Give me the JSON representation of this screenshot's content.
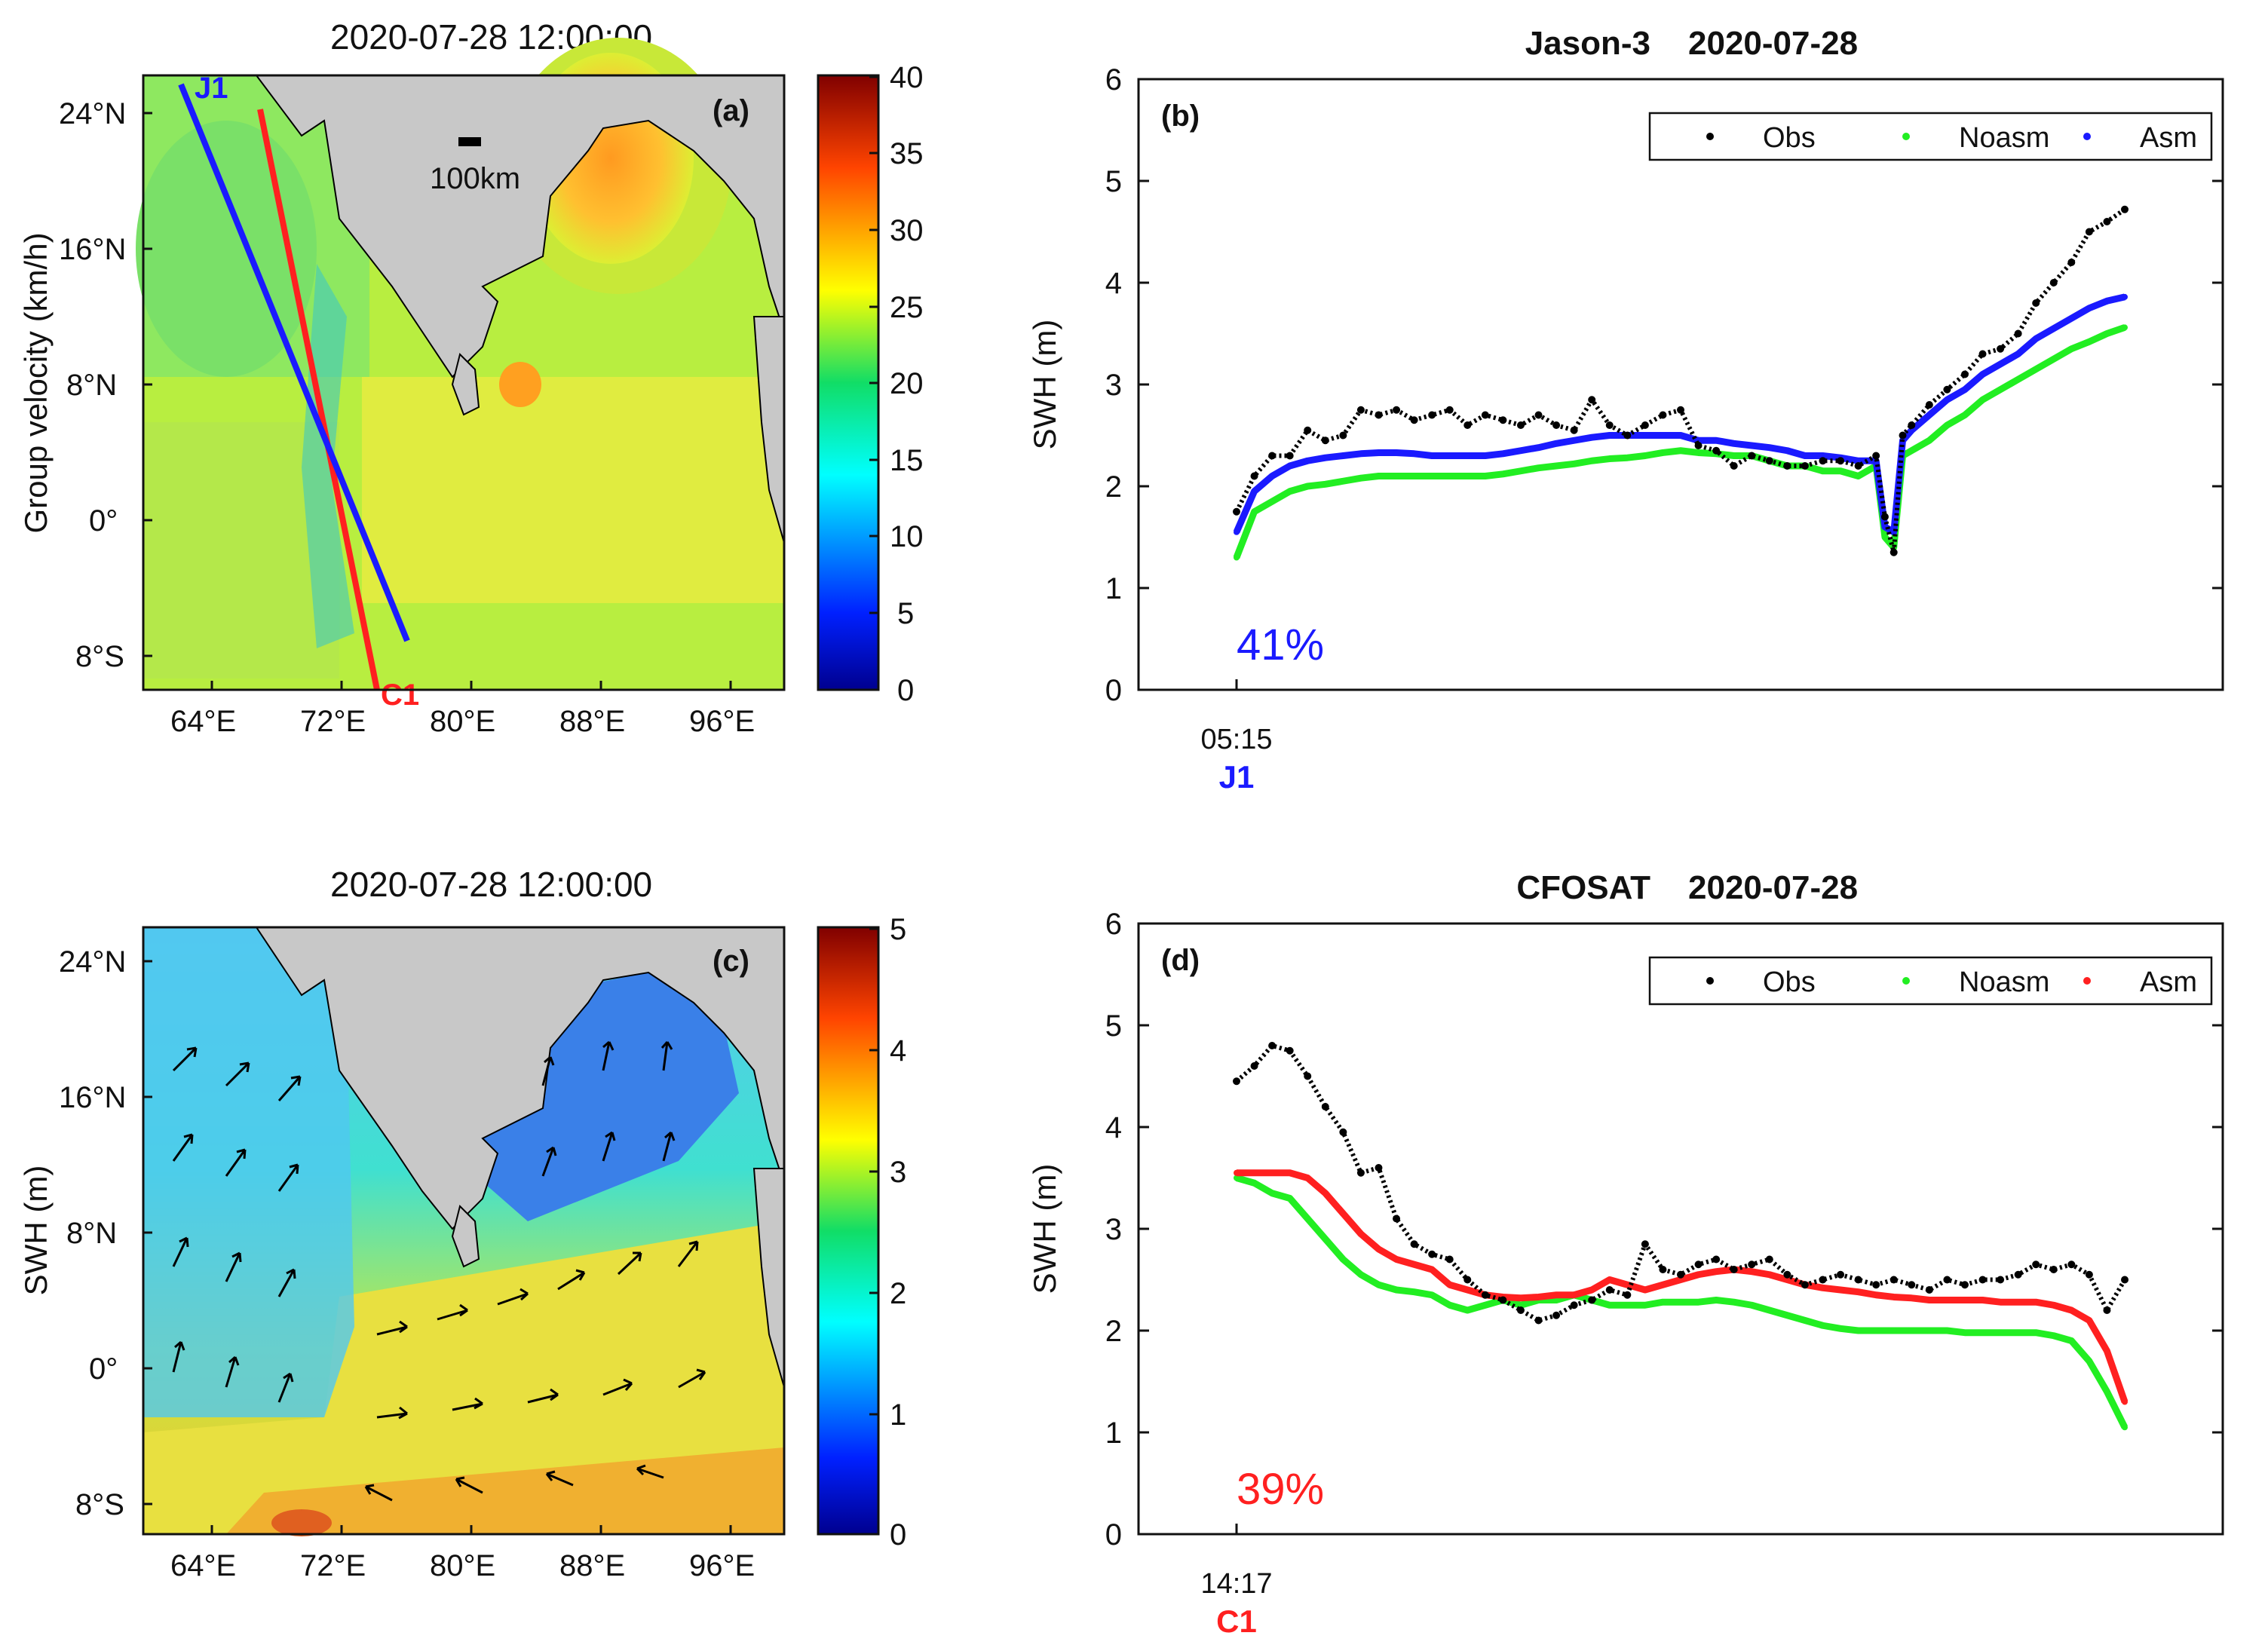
{
  "panels": {
    "a": {
      "title": "2020-07-28 12:00:00",
      "tag": "(a)",
      "ylabel": "Group velocity (km/h)",
      "lat_ticks": [
        "24°N",
        "16°N",
        "8°N",
        "0°",
        "8°S"
      ],
      "lon_ticks": [
        "64°E",
        "72°E",
        "80°E",
        "88°E",
        "96°E"
      ],
      "colorbar_ticks": [
        "40",
        "35",
        "30",
        "25",
        "20",
        "15",
        "10",
        "5",
        "0"
      ],
      "scale_label": "100km",
      "track_j1_label": "J1",
      "track_c1_label": "C1",
      "colors": {
        "j1": "#1a1aff",
        "c1": "#ff2020",
        "land": "#c8c8c8"
      }
    },
    "c": {
      "title": "2020-07-28 12:00:00",
      "tag": "(c)",
      "ylabel": "SWH (m)",
      "lat_ticks": [
        "24°N",
        "16°N",
        "8°N",
        "0°",
        "8°S"
      ],
      "lon_ticks": [
        "64°E",
        "72°E",
        "80°E",
        "88°E",
        "96°E"
      ],
      "colorbar_ticks": [
        "5",
        "4",
        "3",
        "2",
        "1",
        "0"
      ]
    }
  },
  "chart_data": [
    {
      "id": "b",
      "type": "scatter",
      "title": "Jason-3",
      "date": "2020-07-28",
      "tag": "(b)",
      "xlabel": "",
      "ylabel": "SWH (m)",
      "ylim": [
        0,
        6
      ],
      "yticks": [
        "0",
        "1",
        "2",
        "3",
        "4",
        "5",
        "6"
      ],
      "xtick_time": "05:15",
      "xtick_track": "J1",
      "xtick_track_color": "#1a1aff",
      "percent": "41%",
      "percent_color": "#1a1aff",
      "legend": [
        "Obs",
        "Noasm",
        "Asm"
      ],
      "legend_position": "top-right",
      "x": [
        0,
        2,
        4,
        6,
        8,
        10,
        12,
        14,
        16,
        18,
        20,
        22,
        24,
        26,
        28,
        30,
        32,
        34,
        36,
        38,
        40,
        42,
        44,
        46,
        48,
        50,
        52,
        54,
        56,
        58,
        60,
        62,
        64,
        66,
        68,
        70,
        72,
        73,
        74,
        75,
        76,
        78,
        80,
        82,
        84,
        86,
        88,
        90,
        92,
        94,
        96,
        98,
        100
      ],
      "series": [
        {
          "name": "Obs",
          "color": "#000000",
          "values": [
            1.75,
            2.1,
            2.3,
            2.3,
            2.55,
            2.45,
            2.5,
            2.75,
            2.7,
            2.75,
            2.65,
            2.7,
            2.75,
            2.6,
            2.7,
            2.65,
            2.6,
            2.7,
            2.6,
            2.55,
            2.85,
            2.6,
            2.5,
            2.6,
            2.7,
            2.75,
            2.4,
            2.35,
            2.2,
            2.3,
            2.25,
            2.2,
            2.2,
            2.25,
            2.25,
            2.2,
            2.3,
            1.7,
            1.35,
            2.5,
            2.6,
            2.8,
            2.95,
            3.1,
            3.3,
            3.35,
            3.5,
            3.8,
            4.0,
            4.2,
            4.5,
            4.6,
            4.72
          ]
        },
        {
          "name": "Noasm",
          "color": "#22ee22",
          "values": [
            1.3,
            1.75,
            1.85,
            1.95,
            2.0,
            2.02,
            2.05,
            2.08,
            2.1,
            2.1,
            2.1,
            2.1,
            2.1,
            2.1,
            2.1,
            2.12,
            2.15,
            2.18,
            2.2,
            2.22,
            2.25,
            2.27,
            2.28,
            2.3,
            2.33,
            2.35,
            2.33,
            2.32,
            2.3,
            2.3,
            2.25,
            2.2,
            2.2,
            2.15,
            2.15,
            2.1,
            2.2,
            1.5,
            1.4,
            2.3,
            2.35,
            2.45,
            2.6,
            2.7,
            2.85,
            2.95,
            3.05,
            3.15,
            3.25,
            3.35,
            3.42,
            3.5,
            3.56
          ]
        },
        {
          "name": "Asm",
          "color": "#1a1aff",
          "values": [
            1.55,
            1.95,
            2.1,
            2.2,
            2.25,
            2.28,
            2.3,
            2.32,
            2.33,
            2.33,
            2.32,
            2.3,
            2.3,
            2.3,
            2.3,
            2.32,
            2.35,
            2.38,
            2.42,
            2.45,
            2.48,
            2.5,
            2.5,
            2.5,
            2.5,
            2.5,
            2.45,
            2.45,
            2.42,
            2.4,
            2.38,
            2.35,
            2.3,
            2.3,
            2.28,
            2.25,
            2.25,
            1.6,
            1.55,
            2.45,
            2.55,
            2.7,
            2.85,
            2.95,
            3.1,
            3.2,
            3.3,
            3.45,
            3.55,
            3.65,
            3.75,
            3.82,
            3.86
          ]
        }
      ]
    },
    {
      "id": "d",
      "type": "scatter",
      "title": "CFOSAT",
      "date": "2020-07-28",
      "tag": "(d)",
      "xlabel": "",
      "ylabel": "SWH (m)",
      "ylim": [
        0,
        6
      ],
      "yticks": [
        "0",
        "1",
        "2",
        "3",
        "4",
        "5",
        "6"
      ],
      "xtick_time": "14:17",
      "xtick_track": "C1",
      "xtick_track_color": "#ff2020",
      "percent": "39%",
      "percent_color": "#ff2020",
      "legend": [
        "Obs",
        "Noasm",
        "Asm"
      ],
      "legend_position": "top-right",
      "x": [
        0,
        2,
        4,
        6,
        8,
        10,
        12,
        14,
        16,
        18,
        20,
        22,
        24,
        26,
        28,
        30,
        32,
        34,
        36,
        38,
        40,
        42,
        44,
        46,
        48,
        50,
        52,
        54,
        56,
        58,
        60,
        62,
        64,
        66,
        68,
        70,
        72,
        74,
        76,
        78,
        80,
        82,
        84,
        86,
        88,
        90,
        92,
        94,
        96,
        98,
        100
      ],
      "series": [
        {
          "name": "Obs",
          "color": "#000000",
          "values": [
            4.45,
            4.6,
            4.8,
            4.75,
            4.5,
            4.2,
            3.95,
            3.55,
            3.6,
            3.1,
            2.85,
            2.75,
            2.7,
            2.5,
            2.35,
            2.3,
            2.2,
            2.1,
            2.15,
            2.25,
            2.3,
            2.4,
            2.35,
            2.85,
            2.6,
            2.55,
            2.65,
            2.7,
            2.6,
            2.65,
            2.7,
            2.55,
            2.45,
            2.5,
            2.55,
            2.5,
            2.45,
            2.5,
            2.45,
            2.4,
            2.5,
            2.45,
            2.5,
            2.5,
            2.55,
            2.65,
            2.6,
            2.65,
            2.55,
            2.2,
            2.5
          ]
        },
        {
          "name": "Noasm",
          "color": "#22ee22",
          "values": [
            3.5,
            3.45,
            3.35,
            3.3,
            3.1,
            2.9,
            2.7,
            2.55,
            2.45,
            2.4,
            2.38,
            2.35,
            2.25,
            2.2,
            2.25,
            2.3,
            2.25,
            2.3,
            2.3,
            2.35,
            2.3,
            2.25,
            2.25,
            2.25,
            2.28,
            2.28,
            2.28,
            2.3,
            2.28,
            2.25,
            2.2,
            2.15,
            2.1,
            2.05,
            2.02,
            2.0,
            2.0,
            2.0,
            2.0,
            2.0,
            2.0,
            1.98,
            1.98,
            1.98,
            1.98,
            1.98,
            1.95,
            1.9,
            1.7,
            1.4,
            1.05
          ]
        },
        {
          "name": "Asm",
          "color": "#ff2020",
          "values": [
            3.55,
            3.55,
            3.55,
            3.55,
            3.5,
            3.35,
            3.15,
            2.95,
            2.8,
            2.7,
            2.65,
            2.6,
            2.45,
            2.4,
            2.35,
            2.33,
            2.32,
            2.33,
            2.35,
            2.35,
            2.4,
            2.5,
            2.45,
            2.4,
            2.45,
            2.5,
            2.55,
            2.58,
            2.6,
            2.58,
            2.55,
            2.5,
            2.45,
            2.42,
            2.4,
            2.38,
            2.35,
            2.33,
            2.32,
            2.3,
            2.3,
            2.3,
            2.3,
            2.28,
            2.28,
            2.28,
            2.25,
            2.2,
            2.1,
            1.8,
            1.3
          ]
        }
      ]
    }
  ]
}
